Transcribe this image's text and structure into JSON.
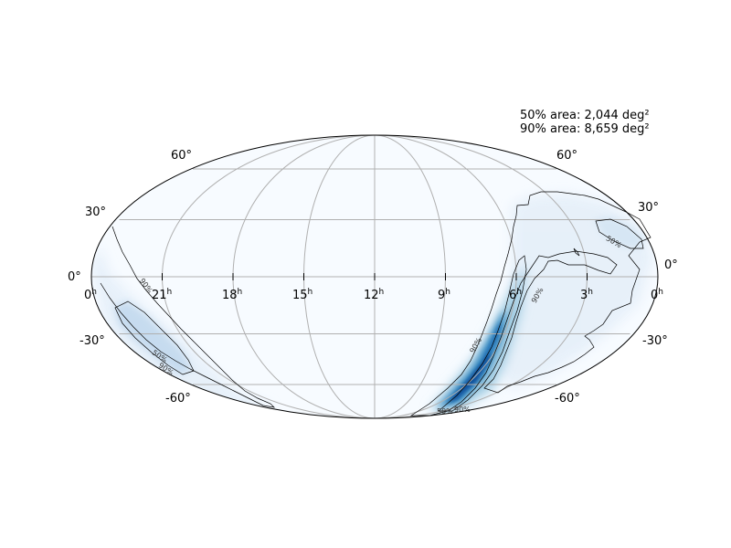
{
  "stats": {
    "line_50": "50% area: 2,044 deg²",
    "line_90": "90% area: 8,659 deg²"
  },
  "labels": {
    "lat_60n_left": "60°",
    "lat_60n_right": "60°",
    "lat_30n_left": "30°",
    "lat_30n_right": "30°",
    "lat_0_left": "0°",
    "lat_0_right": "0°",
    "lat_30s_left": "-30°",
    "lat_30s_right": "-30°",
    "lat_60s_left": "-60°",
    "lat_60s_right": "-60°",
    "hour_unit": "h",
    "ra": [
      "0",
      "21",
      "18",
      "15",
      "12",
      "9",
      "6",
      "3",
      "0"
    ]
  },
  "contour_labels": {
    "c50": "50%",
    "c90": "90%"
  },
  "colors": {
    "background": "#ffffff",
    "sky_base": "#f7fbff",
    "sky_light": "#deebf7",
    "sky_mid": "#9ecae1",
    "sky_strong": "#4292c6",
    "sky_peak": "#08306b",
    "grid": "#b0b0b0",
    "contour": "#000000"
  },
  "projection": "mollweide",
  "colormap": "Blues",
  "contour_levels": [
    "50%",
    "90%"
  ],
  "grid": true
}
